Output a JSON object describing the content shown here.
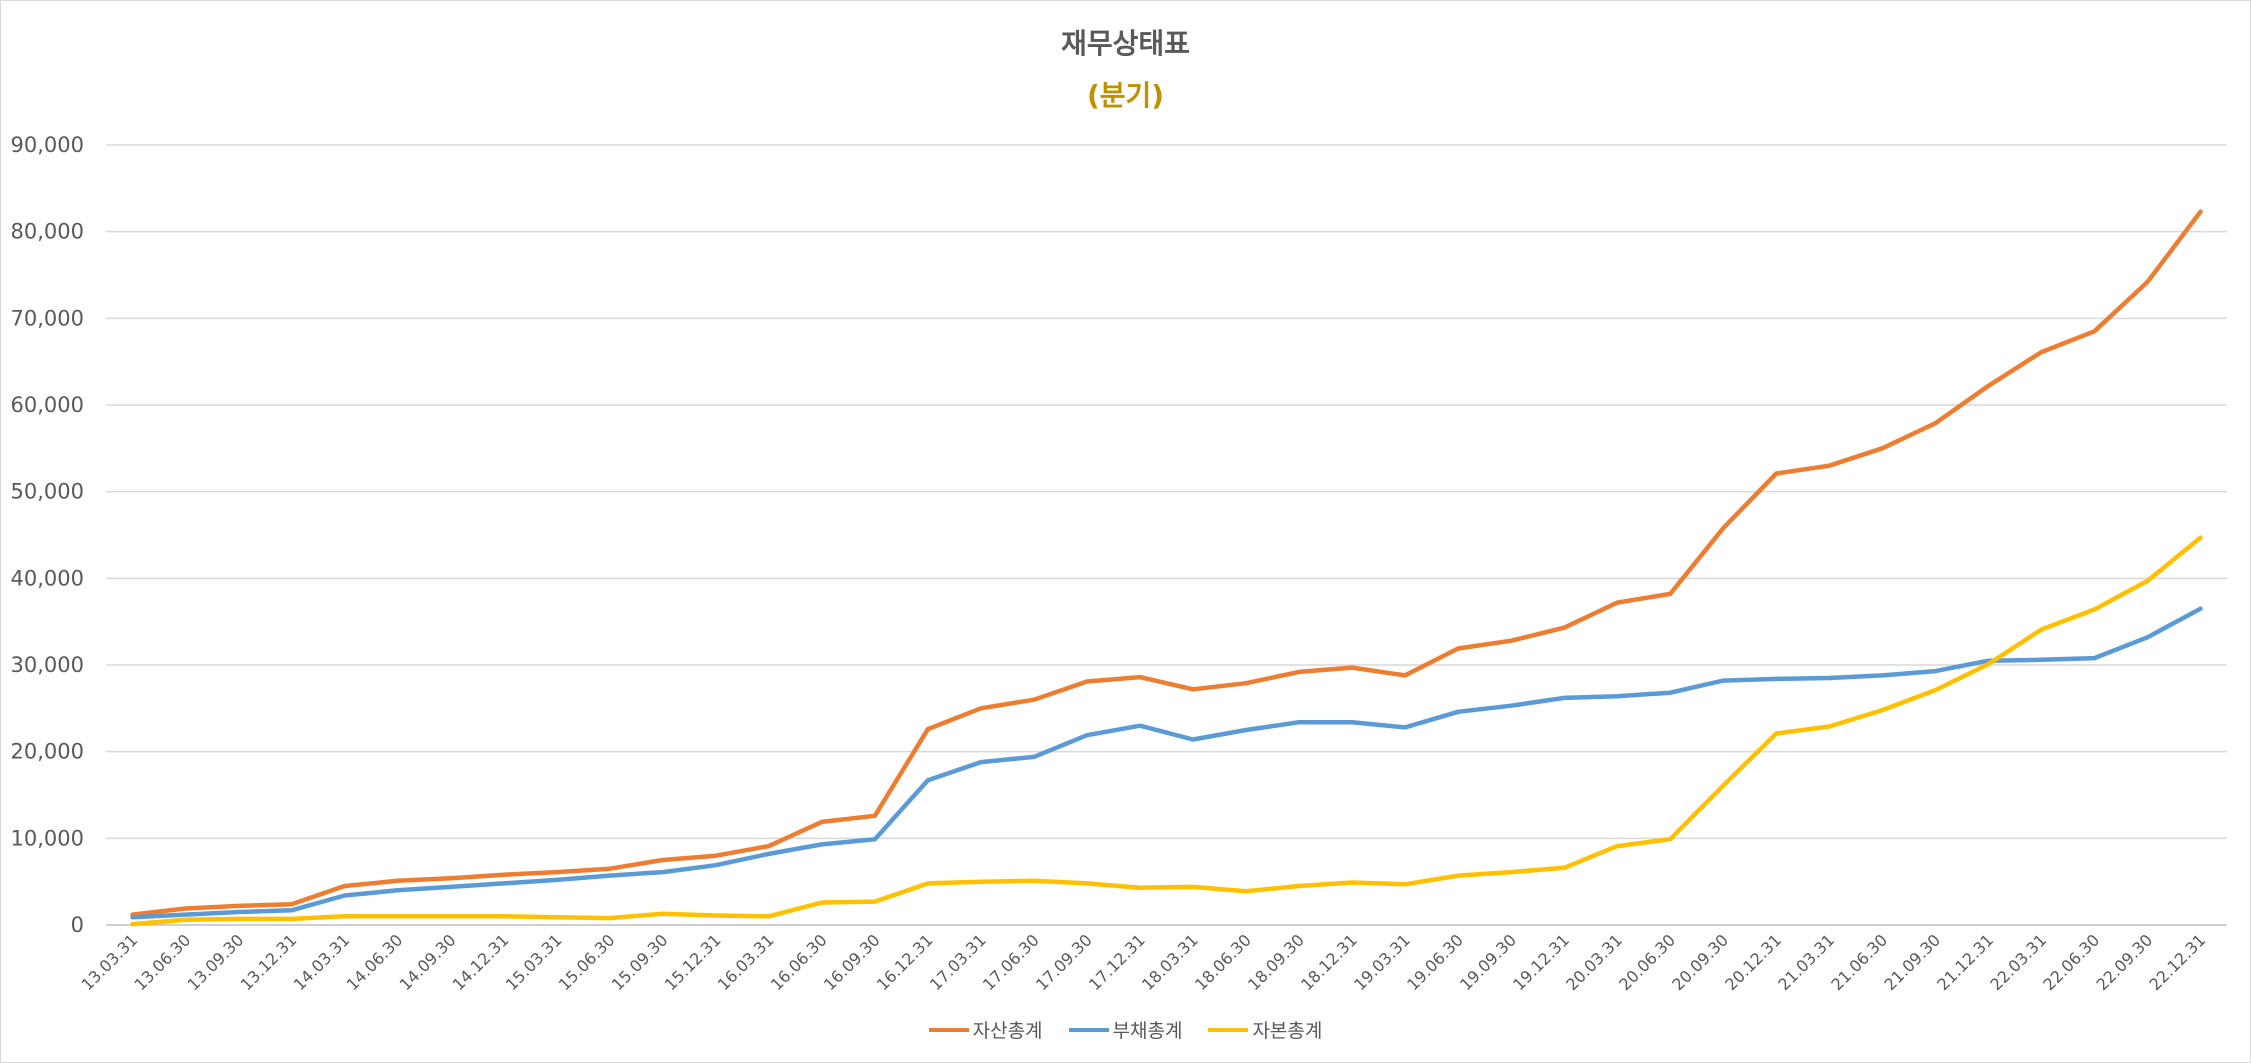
{
  "chart_data": {
    "type": "line",
    "title": "재무상태표",
    "subtitle": "(분기)",
    "xlabel": "",
    "ylabel": "",
    "ylim": [
      0,
      90000
    ],
    "yticks": [
      0,
      10000,
      20000,
      30000,
      40000,
      50000,
      60000,
      70000,
      80000,
      90000
    ],
    "ytick_labels": [
      "0",
      "10,000",
      "20,000",
      "30,000",
      "40,000",
      "50,000",
      "60,000",
      "70,000",
      "80,000",
      "90,000"
    ],
    "grid": true,
    "legend_position": "bottom",
    "categories": [
      "13.03.31",
      "13.06.30",
      "13.09.30",
      "13.12.31",
      "14.03.31",
      "14.06.30",
      "14.09.30",
      "14.12.31",
      "15.03.31",
      "15.06.30",
      "15.09.30",
      "15.12.31",
      "16.03.31",
      "16.06.30",
      "16.09.30",
      "16.12.31",
      "17.03.31",
      "17.06.30",
      "17.09.30",
      "17.12.31",
      "18.03.31",
      "18.06.30",
      "18.09.30",
      "18.12.31",
      "19.03.31",
      "19.06.30",
      "19.09.30",
      "19.12.31",
      "20.03.31",
      "20.06.30",
      "20.09.30",
      "20.12.31",
      "21.03.31",
      "21.06.30",
      "21.09.30",
      "21.12.31",
      "22.03.31",
      "22.06.30",
      "22.09.30",
      "22.12.31"
    ],
    "series": [
      {
        "name": "자산총계",
        "color": "#ed7d31",
        "values": [
          1200,
          1900,
          2200,
          2400,
          4500,
          5100,
          5400,
          5800,
          6100,
          6500,
          7500,
          8000,
          9100,
          11900,
          12600,
          22600,
          25000,
          26000,
          28100,
          28600,
          27200,
          27900,
          29200,
          29700,
          28800,
          31900,
          32800,
          34300,
          37200,
          38200,
          45800,
          52100,
          53000,
          55000,
          57900,
          62200,
          66100,
          68500,
          74200,
          82300
        ]
      },
      {
        "name": "부채총계",
        "color": "#5b9bd5",
        "values": [
          900,
          1200,
          1500,
          1700,
          3400,
          4000,
          4400,
          4800,
          5200,
          5700,
          6100,
          6900,
          8200,
          9300,
          9900,
          16700,
          18800,
          19400,
          21900,
          23000,
          21400,
          22500,
          23400,
          23400,
          22800,
          24600,
          25300,
          26200,
          26400,
          26800,
          28200,
          28400,
          28500,
          28800,
          29300,
          30500,
          30600,
          30800,
          33200,
          36500
        ]
      },
      {
        "name": "자본총계",
        "color": "#ffc000",
        "values": [
          100,
          600,
          700,
          700,
          1000,
          1000,
          1000,
          1000,
          900,
          800,
          1300,
          1100,
          1000,
          2600,
          2700,
          4800,
          5000,
          5100,
          4800,
          4300,
          4400,
          3900,
          4500,
          4900,
          4700,
          5700,
          6100,
          6600,
          9100,
          9900,
          16100,
          22100,
          22900,
          24800,
          27100,
          30100,
          34100,
          36400,
          39700,
          44700
        ]
      }
    ]
  }
}
